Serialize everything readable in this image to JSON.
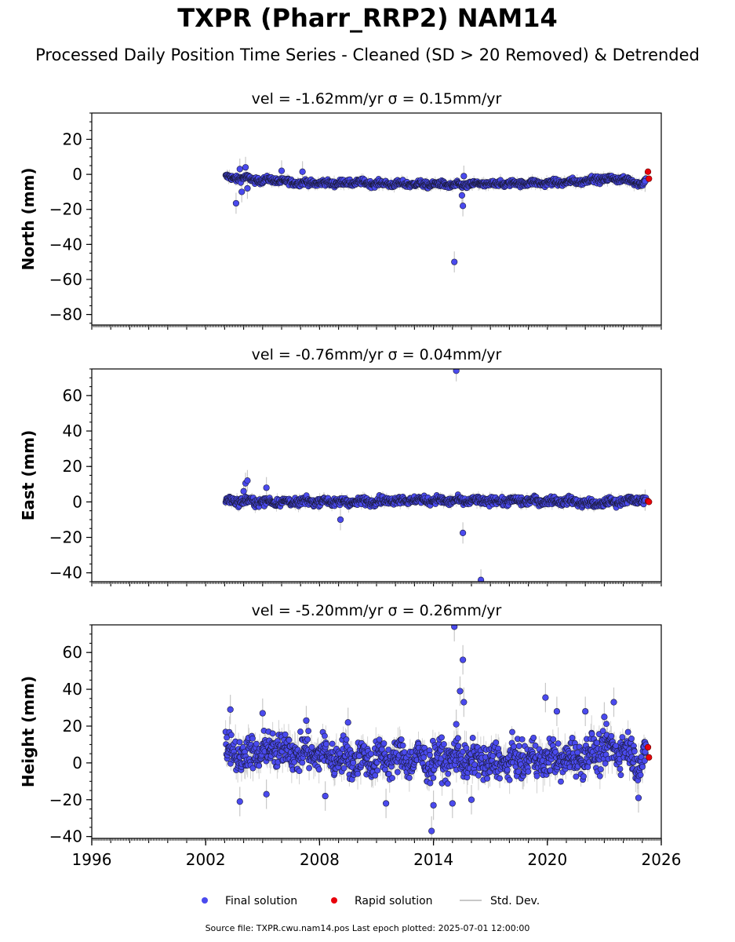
{
  "title": "TXPR (Pharr_RRP2) NAM14",
  "subtitle": "Processed Daily Position Time Series - Cleaned (SD > 20 Removed) & Detrended",
  "footer": "Source file: TXPR.cwu.nam14.pos  Last epoch plotted: 2025-07-01 12:00:00",
  "colors": {
    "final": "#4a4aee",
    "rapid": "#e8000b",
    "stddev": "#c8c8c8",
    "marker_edge": "#1a1a3a"
  },
  "chart_data": [
    {
      "type": "scatter",
      "panel": "north",
      "title": "vel = -1.62mm/yr   σ = 0.15mm/yr",
      "ylabel": "North (mm)",
      "xlim": [
        1996,
        2026
      ],
      "ylim": [
        -86,
        35
      ],
      "yticks": [
        20,
        0,
        -20,
        -40,
        -60,
        -80
      ],
      "grid": false,
      "series": [
        {
          "name": "Final solution",
          "segments": [
            [
              2003.05,
              -1.5
            ],
            [
              2003.5,
              -2.5
            ],
            [
              2004.0,
              -1.8
            ],
            [
              2004.5,
              -3.2
            ],
            [
              2005.0,
              -3.5
            ],
            [
              2005.5,
              -3.0
            ],
            [
              2006.0,
              -4.0
            ],
            [
              2006.5,
              -4.5
            ],
            [
              2007.0,
              -4.8
            ],
            [
              2008.0,
              -5.0
            ],
            [
              2009.0,
              -5.0
            ],
            [
              2010.0,
              -4.6
            ],
            [
              2011.0,
              -5.2
            ],
            [
              2012.0,
              -5.5
            ],
            [
              2013.0,
              -5.5
            ],
            [
              2014.0,
              -5.8
            ],
            [
              2014.5,
              -5.5
            ],
            [
              2015.0,
              -6.5
            ],
            [
              2015.5,
              -6.2
            ],
            [
              2016.0,
              -5.6
            ],
            [
              2017.0,
              -5.5
            ],
            [
              2018.0,
              -5.2
            ],
            [
              2019.0,
              -5.0
            ],
            [
              2020.0,
              -5.0
            ],
            [
              2021.0,
              -4.5
            ],
            [
              2022.0,
              -3.8
            ],
            [
              2022.5,
              -2.5
            ],
            [
              2023.0,
              -3.0
            ],
            [
              2023.5,
              -2.2
            ],
            [
              2024.0,
              -3.0
            ],
            [
              2024.5,
              -4.0
            ],
            [
              2025.0,
              -5.5
            ],
            [
              2025.2,
              -3.0
            ]
          ],
          "amplitude": 1.6,
          "outliers": [
            [
              2003.6,
              -16.5
            ],
            [
              2003.8,
              3.0
            ],
            [
              2004.1,
              4.0
            ],
            [
              2003.9,
              -10.0
            ],
            [
              2004.2,
              -8.0
            ],
            [
              2006.0,
              2.0
            ],
            [
              2007.1,
              1.5
            ],
            [
              2015.1,
              -50.0
            ],
            [
              2015.55,
              -18.0
            ],
            [
              2015.5,
              -12.0
            ],
            [
              2015.6,
              -1.0
            ],
            [
              2025.15,
              -4.0
            ]
          ]
        },
        {
          "name": "Rapid solution",
          "points": [
            [
              2025.3,
              1.5
            ],
            [
              2025.35,
              -2.5
            ]
          ]
        }
      ]
    },
    {
      "type": "scatter",
      "panel": "east",
      "title": "vel = -0.76mm/yr   σ = 0.04mm/yr",
      "ylabel": "East (mm)",
      "xlim": [
        1996,
        2026
      ],
      "ylim": [
        -45,
        75
      ],
      "yticks": [
        60,
        40,
        20,
        0,
        -20,
        -40
      ],
      "grid": false,
      "series": [
        {
          "name": "Final solution",
          "segments": [
            [
              2003.05,
              0.5
            ],
            [
              2004.0,
              0.5
            ],
            [
              2005.0,
              0.0
            ],
            [
              2006.0,
              0.0
            ],
            [
              2007.0,
              0.0
            ],
            [
              2008.0,
              0.5
            ],
            [
              2009.0,
              0.0
            ],
            [
              2010.0,
              0.0
            ],
            [
              2011.0,
              0.5
            ],
            [
              2012.0,
              1.0
            ],
            [
              2013.0,
              1.0
            ],
            [
              2014.0,
              1.0
            ],
            [
              2015.0,
              0.5
            ],
            [
              2016.0,
              0.5
            ],
            [
              2017.0,
              0.5
            ],
            [
              2018.0,
              0.5
            ],
            [
              2019.0,
              0.5
            ],
            [
              2020.0,
              0.5
            ],
            [
              2021.0,
              0.5
            ],
            [
              2022.0,
              -0.5
            ],
            [
              2022.5,
              -1.5
            ],
            [
              2023.0,
              -0.5
            ],
            [
              2024.0,
              0.5
            ],
            [
              2025.0,
              1.0
            ],
            [
              2025.2,
              0.5
            ]
          ],
          "amplitude": 2.0,
          "outliers": [
            [
              2004.1,
              10.5
            ],
            [
              2004.2,
              12.0
            ],
            [
              2005.2,
              8.0
            ],
            [
              2004.0,
              6.0
            ],
            [
              2009.1,
              -10.0
            ],
            [
              2015.2,
              74.0
            ],
            [
              2015.55,
              -17.5
            ],
            [
              2016.5,
              -44.0
            ],
            [
              2025.15,
              1.0
            ]
          ]
        },
        {
          "name": "Rapid solution",
          "points": [
            [
              2025.3,
              0.5
            ],
            [
              2025.35,
              0.0
            ]
          ]
        }
      ]
    },
    {
      "type": "scatter",
      "panel": "height",
      "title": "vel = -5.20mm/yr   σ = 0.26mm/yr",
      "ylabel": "Height (mm)",
      "xlim": [
        1996,
        2026
      ],
      "xticks": [
        1996,
        2002,
        2008,
        2014,
        2020,
        2026
      ],
      "ylim": [
        -41,
        75
      ],
      "yticks": [
        60,
        40,
        20,
        0,
        -20,
        -40
      ],
      "grid": false,
      "series": [
        {
          "name": "Final solution",
          "segments": [
            [
              2003.05,
              8.0
            ],
            [
              2004.0,
              4.0
            ],
            [
              2005.0,
              6.0
            ],
            [
              2006.0,
              8.0
            ],
            [
              2007.0,
              5.0
            ],
            [
              2008.0,
              5.0
            ],
            [
              2009.0,
              3.0
            ],
            [
              2010.0,
              2.0
            ],
            [
              2011.0,
              2.0
            ],
            [
              2012.0,
              3.0
            ],
            [
              2013.0,
              2.0
            ],
            [
              2014.0,
              1.0
            ],
            [
              2015.0,
              3.0
            ],
            [
              2016.0,
              1.0
            ],
            [
              2017.0,
              0.0
            ],
            [
              2018.0,
              1.0
            ],
            [
              2019.0,
              2.0
            ],
            [
              2020.0,
              2.0
            ],
            [
              2021.0,
              2.0
            ],
            [
              2022.0,
              4.0
            ],
            [
              2023.0,
              7.0
            ],
            [
              2024.0,
              8.0
            ],
            [
              2025.0,
              0.0
            ],
            [
              2025.2,
              4.0
            ]
          ],
          "amplitude": 8.5,
          "outliers": [
            [
              2003.3,
              29.0
            ],
            [
              2005.0,
              27.0
            ],
            [
              2007.3,
              23.0
            ],
            [
              2009.5,
              22.0
            ],
            [
              2015.1,
              74.0
            ],
            [
              2015.55,
              56.0
            ],
            [
              2015.4,
              39.0
            ],
            [
              2015.6,
              33.0
            ],
            [
              2015.2,
              21.0
            ],
            [
              2019.9,
              35.5
            ],
            [
              2020.5,
              28.0
            ],
            [
              2022.0,
              28.0
            ],
            [
              2023.5,
              33.0
            ],
            [
              2023.0,
              25.0
            ],
            [
              2013.9,
              -37.0
            ],
            [
              2003.8,
              -21.0
            ],
            [
              2005.2,
              -17.0
            ],
            [
              2008.3,
              -18.0
            ],
            [
              2014.0,
              -23.0
            ],
            [
              2015.0,
              -22.0
            ],
            [
              2016.0,
              -20.0
            ],
            [
              2011.5,
              -22.0
            ],
            [
              2024.8,
              -19.0
            ],
            [
              2025.15,
              6.0
            ]
          ]
        },
        {
          "name": "Rapid solution",
          "points": [
            [
              2025.3,
              8.5
            ],
            [
              2025.35,
              3.0
            ]
          ]
        }
      ]
    }
  ],
  "legend": {
    "position": "bottom-center",
    "items": [
      {
        "label": "Final solution",
        "kind": "final"
      },
      {
        "label": "Rapid solution",
        "kind": "rapid"
      },
      {
        "label": "Std. Dev.",
        "kind": "stddev"
      }
    ]
  }
}
